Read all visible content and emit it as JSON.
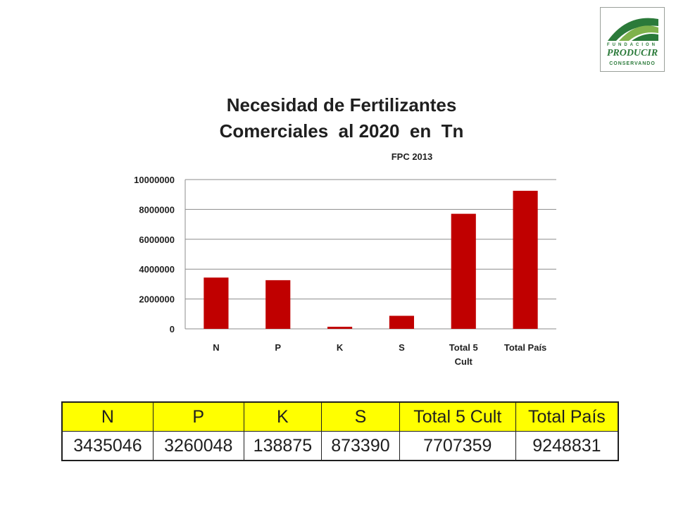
{
  "logo": {
    "line1": "FUNDACION",
    "line2": "PRODUCIR",
    "line3": "CONSERVANDO",
    "colors": {
      "green": "#2b7a3a",
      "light_green": "#7fb24c"
    }
  },
  "chart_data": {
    "type": "bar",
    "title_line1": "Necesidad de Fertilizantes",
    "title_line2": "Comerciales  al 2020  en  Tn",
    "subtitle": "FPC 2013",
    "categories": [
      "N",
      "P",
      "K",
      "S",
      "Total 5 Cult",
      "Total País"
    ],
    "category_lines": [
      [
        "N"
      ],
      [
        "P"
      ],
      [
        "K"
      ],
      [
        "S"
      ],
      [
        "Total 5",
        "Cult"
      ],
      [
        "Total País"
      ]
    ],
    "values": [
      3435046,
      3260048,
      138875,
      873390,
      7707359,
      9248831
    ],
    "ylim": [
      0,
      10000000
    ],
    "yticks": [
      0,
      2000000,
      4000000,
      6000000,
      8000000,
      10000000
    ],
    "grid": true,
    "legend": "none",
    "bar_color": "#c00000"
  },
  "table": {
    "headers": [
      "N",
      "P",
      "K",
      "S",
      "Total 5 Cult",
      "Total País"
    ],
    "values": [
      "3435046",
      "3260048",
      "138875",
      "873390",
      "7707359",
      "9248831"
    ],
    "header_bg": "#ffff00"
  }
}
